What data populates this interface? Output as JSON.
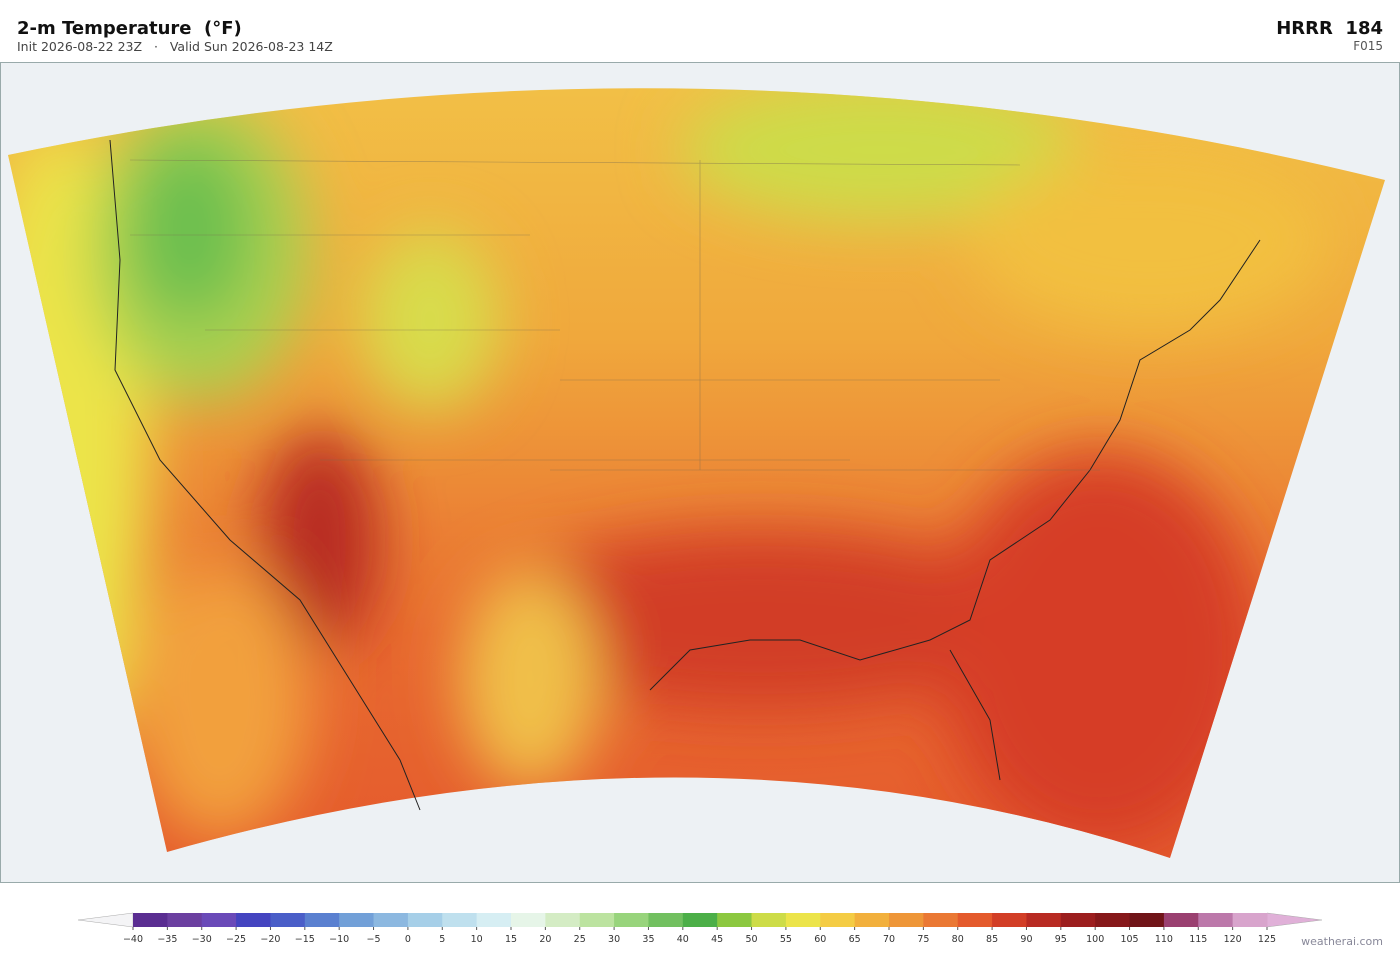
{
  "header": {
    "title": "2-m Temperature  (°F)",
    "subtitle": "Init 2026-08-22 23Z   ·   Valid Sun 2026-08-23 14Z",
    "model": "HRRR  184",
    "forecast_hour": "F015"
  },
  "colorbar": {
    "ticks": [
      {
        "value": -40,
        "label": "−40"
      },
      {
        "value": -35,
        "label": "−35"
      },
      {
        "value": -30,
        "label": "−30"
      },
      {
        "value": -25,
        "label": "−25"
      },
      {
        "value": -20,
        "label": "−20"
      },
      {
        "value": -15,
        "label": "−15"
      },
      {
        "value": -10,
        "label": "−10"
      },
      {
        "value": -5,
        "label": "−5"
      },
      0,
      5,
      10,
      15,
      20,
      25,
      30,
      35,
      40,
      45,
      50,
      55,
      60,
      65,
      70,
      75,
      80,
      85,
      90,
      95,
      100,
      105,
      110,
      115,
      120,
      125
    ],
    "colors": [
      "#5a2d91",
      "#6b3fa0",
      "#6a4ab8",
      "#4444c0",
      "#4a5ec8",
      "#5a80d0",
      "#72a0d8",
      "#8cb8e0",
      "#a6cfe8",
      "#bfe0ee",
      "#d6eef3",
      "#e6f5e8",
      "#d4ecc4",
      "#bce3a0",
      "#98d47c",
      "#72c060",
      "#4caf48",
      "#8cc840",
      "#cddc48",
      "#ece44a",
      "#f4cc44",
      "#f2b03c",
      "#ee9638",
      "#ea7834",
      "#e45a2c",
      "#d23e26",
      "#b82a22",
      "#9c1e1e",
      "#86181a",
      "#701418",
      "#9a4070",
      "#bc78aa",
      "#d8a4cc"
    ],
    "under_color": "#f4f4f6",
    "over_color": "#e0b0d8"
  },
  "credit": "weatherai.com"
}
